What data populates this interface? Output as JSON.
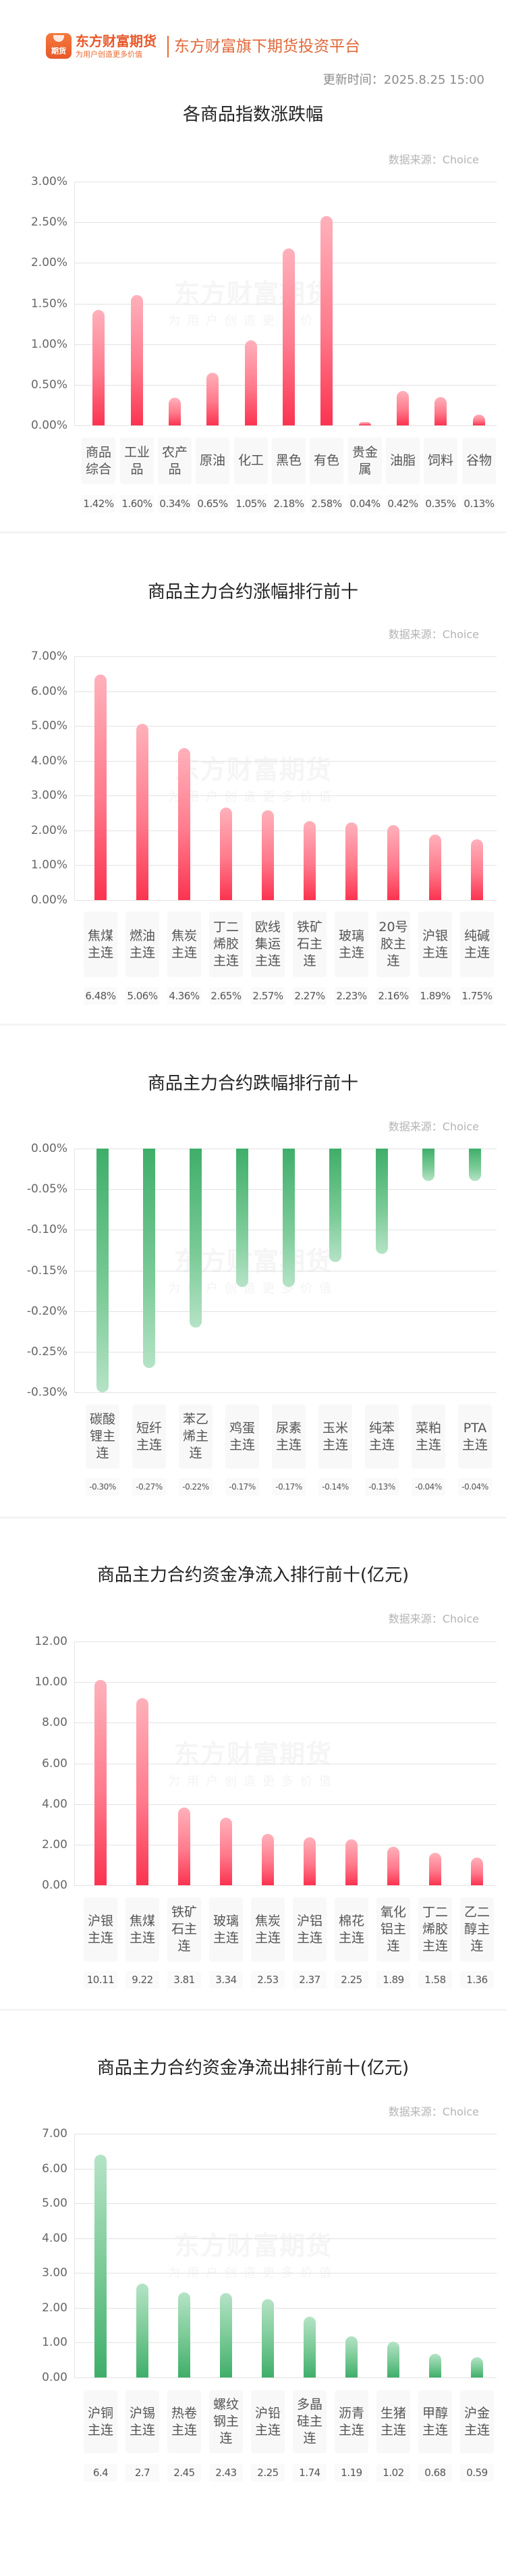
{
  "header": {
    "logo_text": "期货",
    "brand_name": "东方财富期货",
    "brand_tagline": "为用户创造更多价值",
    "slogan": "东方财富旗下期货投资平台",
    "update_time": "更新时间：2025.8.25 15:00"
  },
  "watermark": {
    "main": "东方财富期货",
    "sub": "为用户创造更多价值"
  },
  "colors": {
    "brand_orange": "#e8582a",
    "rise_red": "#fb3350",
    "fall_green": "#3fae6a"
  },
  "chart_data": [
    {
      "type": "bar",
      "title": "各商品指数涨跌幅",
      "source": "数据来源：Choice",
      "color": "red",
      "direction": "up",
      "ylim": [
        0,
        3.0
      ],
      "yticks": [
        "3.00%",
        "2.50%",
        "2.00%",
        "1.50%",
        "1.00%",
        "0.50%",
        "0.00%"
      ],
      "categories": [
        "商品综合",
        "工业品",
        "农产品",
        "原油",
        "化工",
        "黑色",
        "有色",
        "贵金属",
        "油脂",
        "饲料",
        "谷物"
      ],
      "values": [
        1.42,
        1.6,
        0.34,
        0.65,
        1.05,
        2.18,
        2.58,
        0.04,
        0.42,
        0.35,
        0.13
      ],
      "value_labels": [
        "1.42%",
        "1.60%",
        "0.34%",
        "0.65%",
        "1.05%",
        "2.18%",
        "2.58%",
        "0.04%",
        "0.42%",
        "0.35%",
        "0.13%"
      ],
      "unit": "%"
    },
    {
      "type": "bar",
      "title": "商品主力合约涨幅排行前十",
      "source": "数据来源：Choice",
      "color": "red",
      "direction": "up",
      "ylim": [
        0,
        7.0
      ],
      "yticks": [
        "7.00%",
        "6.00%",
        "5.00%",
        "4.00%",
        "3.00%",
        "2.00%",
        "1.00%",
        "0.00%"
      ],
      "categories": [
        "焦煤主连",
        "燃油主连",
        "焦炭主连",
        "丁二烯胶主连",
        "欧线集运主连",
        "铁矿石主连",
        "玻璃主连",
        "20号胶主连",
        "沪银主连",
        "纯碱主连"
      ],
      "values": [
        6.48,
        5.06,
        4.36,
        2.65,
        2.57,
        2.27,
        2.23,
        2.16,
        1.89,
        1.75
      ],
      "value_labels": [
        "6.48%",
        "5.06%",
        "4.36%",
        "2.65%",
        "2.57%",
        "2.27%",
        "2.23%",
        "2.16%",
        "1.89%",
        "1.75%"
      ],
      "unit": "%"
    },
    {
      "type": "bar",
      "title": "商品主力合约跌幅排行前十",
      "source": "数据来源：Choice",
      "color": "green",
      "direction": "down",
      "ylim": [
        -0.3,
        0
      ],
      "yticks": [
        "0.00%",
        "-0.05%",
        "-0.10%",
        "-0.15%",
        "-0.20%",
        "-0.25%",
        "-0.30%"
      ],
      "categories": [
        "碳酸锂主连",
        "短纤主连",
        "苯乙烯主连",
        "鸡蛋主连",
        "尿素主连",
        "玉米主连",
        "纯苯主连",
        "菜粕主连",
        "PTA主连"
      ],
      "values": [
        -0.3,
        -0.27,
        -0.22,
        -0.17,
        -0.17,
        -0.14,
        -0.13,
        -0.04,
        -0.04
      ],
      "value_labels": [
        "-0.30%",
        "-0.27%",
        "-0.22%",
        "-0.17%",
        "-0.17%",
        "-0.14%",
        "-0.13%",
        "-0.04%",
        "-0.04%"
      ],
      "unit": "%"
    },
    {
      "type": "bar",
      "title": "商品主力合约资金净流入排行前十(亿元)",
      "source": "数据来源：Choice",
      "color": "red",
      "direction": "up",
      "ylim": [
        0,
        12.0
      ],
      "yticks": [
        "12.00",
        "10.00",
        "8.00",
        "6.00",
        "4.00",
        "2.00",
        "0.00"
      ],
      "categories": [
        "沪银主连",
        "焦煤主连",
        "铁矿石主连",
        "玻璃主连",
        "焦炭主连",
        "沪铝主连",
        "棉花主连",
        "氧化铝主连",
        "丁二烯胶主连",
        "乙二醇主连"
      ],
      "values": [
        10.11,
        9.22,
        3.81,
        3.34,
        2.53,
        2.37,
        2.25,
        1.89,
        1.58,
        1.36
      ],
      "value_labels": [
        "10.11",
        "9.22",
        "3.81",
        "3.34",
        "2.53",
        "2.37",
        "2.25",
        "1.89",
        "1.58",
        "1.36"
      ],
      "unit": "亿元"
    },
    {
      "type": "bar",
      "title": "商品主力合约资金净流出排行前十(亿元)",
      "source": "数据来源：Choice",
      "color": "green",
      "direction": "up",
      "ylim": [
        0,
        7.0
      ],
      "yticks": [
        "7.00",
        "6.00",
        "5.00",
        "4.00",
        "3.00",
        "2.00",
        "1.00",
        "0.00"
      ],
      "categories": [
        "沪铜主连",
        "沪锡主连",
        "热卷主连",
        "螺纹钢主连",
        "沪铅主连",
        "多晶硅主连",
        "沥青主连",
        "生猪主连",
        "甲醇主连",
        "沪金主连"
      ],
      "values": [
        6.4,
        2.7,
        2.45,
        2.43,
        2.25,
        1.74,
        1.19,
        1.02,
        0.68,
        0.59
      ],
      "value_labels": [
        "6.4",
        "2.7",
        "2.45",
        "2.43",
        "2.25",
        "1.74",
        "1.19",
        "1.02",
        "0.68",
        "0.59"
      ],
      "unit": "亿元"
    }
  ]
}
